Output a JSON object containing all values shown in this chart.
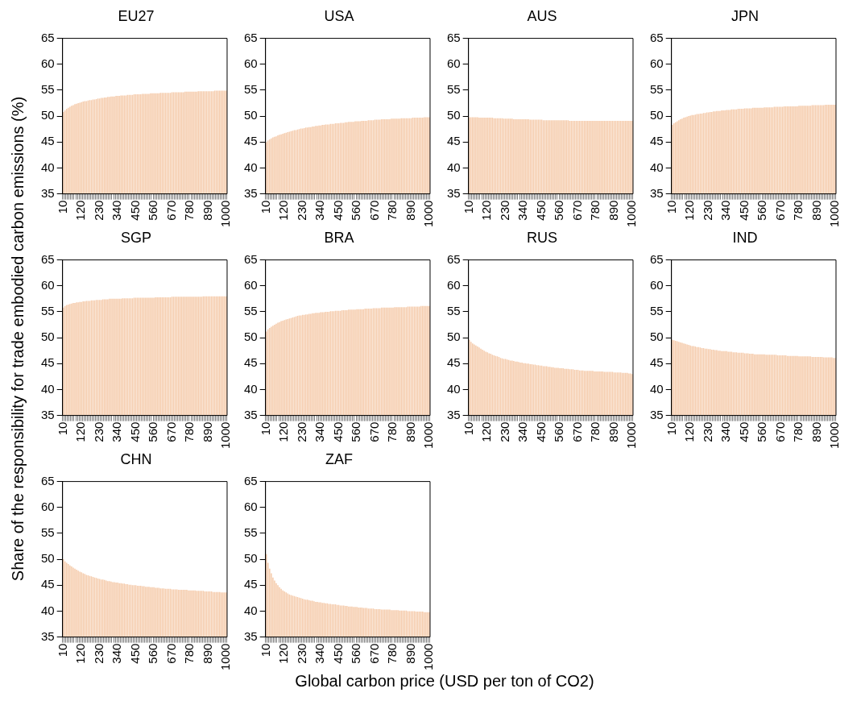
{
  "chart_data": [
    {
      "type": "bar",
      "title": "EU27",
      "color": "#f5cbab",
      "ylim": [
        35,
        65
      ],
      "yticks": [
        35,
        40,
        45,
        50,
        55,
        60,
        65
      ],
      "grid": false,
      "categories": [
        "10",
        null,
        null,
        null,
        null,
        null,
        null,
        null,
        null,
        null,
        null,
        "120",
        null,
        null,
        null,
        null,
        null,
        null,
        null,
        null,
        null,
        null,
        "230",
        null,
        null,
        null,
        null,
        null,
        null,
        null,
        null,
        null,
        null,
        "340",
        null,
        null,
        null,
        null,
        null,
        null,
        null,
        null,
        null,
        null,
        "450",
        null,
        null,
        null,
        null,
        null,
        null,
        null,
        null,
        null,
        null,
        "560",
        null,
        null,
        null,
        null,
        null,
        null,
        null,
        null,
        null,
        null,
        "670",
        null,
        null,
        null,
        null,
        null,
        null,
        null,
        null,
        null,
        null,
        "780",
        null,
        null,
        null,
        null,
        null,
        null,
        null,
        null,
        null,
        null,
        "890",
        null,
        null,
        null,
        null,
        null,
        null,
        null,
        null,
        null,
        null,
        "1000"
      ],
      "values": [
        50.8,
        51.1,
        51.4,
        51.6,
        51.8,
        52.0,
        52.1,
        52.3,
        52.4,
        52.5,
        52.6,
        52.7,
        52.8,
        52.9,
        52.9,
        53.0,
        53.1,
        53.1,
        53.2,
        53.2,
        53.3,
        53.4,
        53.4,
        53.5,
        53.5,
        53.6,
        53.6,
        53.7,
        53.7,
        53.8,
        53.8,
        53.8,
        53.9,
        53.9,
        53.9,
        54.0,
        54.0,
        54.0,
        54.0,
        54.1,
        54.1,
        54.1,
        54.1,
        54.2,
        54.2,
        54.2,
        54.2,
        54.2,
        54.3,
        54.3,
        54.3,
        54.3,
        54.3,
        54.4,
        54.4,
        54.4,
        54.4,
        54.4,
        54.4,
        54.5,
        54.5,
        54.5,
        54.5,
        54.5,
        54.5,
        54.5,
        54.6,
        54.6,
        54.6,
        54.6,
        54.6,
        54.6,
        54.6,
        54.6,
        54.7,
        54.7,
        54.7,
        54.7,
        54.7,
        54.7,
        54.7,
        54.7,
        54.8,
        54.8,
        54.8,
        54.8,
        54.8,
        54.8,
        54.8,
        54.8,
        54.8,
        54.8,
        54.9,
        54.9,
        54.9,
        54.9,
        54.9,
        54.9,
        54.9,
        54.9
      ]
    },
    {
      "type": "bar",
      "title": "USA",
      "color": "#f5cbab",
      "ylim": [
        35,
        65
      ],
      "yticks": [
        35,
        40,
        45,
        50,
        55,
        60,
        65
      ],
      "grid": false,
      "categories": [
        "10",
        null,
        null,
        null,
        null,
        null,
        null,
        null,
        null,
        null,
        null,
        "120",
        null,
        null,
        null,
        null,
        null,
        null,
        null,
        null,
        null,
        null,
        "230",
        null,
        null,
        null,
        null,
        null,
        null,
        null,
        null,
        null,
        null,
        "340",
        null,
        null,
        null,
        null,
        null,
        null,
        null,
        null,
        null,
        null,
        "450",
        null,
        null,
        null,
        null,
        null,
        null,
        null,
        null,
        null,
        null,
        "560",
        null,
        null,
        null,
        null,
        null,
        null,
        null,
        null,
        null,
        null,
        "670",
        null,
        null,
        null,
        null,
        null,
        null,
        null,
        null,
        null,
        null,
        "780",
        null,
        null,
        null,
        null,
        null,
        null,
        null,
        null,
        null,
        null,
        "890",
        null,
        null,
        null,
        null,
        null,
        null,
        null,
        null,
        null,
        null,
        "1000"
      ],
      "values": [
        45.0,
        45.3,
        45.5,
        45.7,
        45.9,
        46.0,
        46.1,
        46.3,
        46.4,
        46.5,
        46.6,
        46.7,
        46.8,
        46.9,
        47.0,
        47.1,
        47.2,
        47.3,
        47.3,
        47.4,
        47.5,
        47.6,
        47.6,
        47.7,
        47.8,
        47.8,
        47.9,
        47.9,
        48.0,
        48.0,
        48.1,
        48.1,
        48.2,
        48.2,
        48.3,
        48.3,
        48.4,
        48.4,
        48.4,
        48.5,
        48.5,
        48.5,
        48.6,
        48.6,
        48.6,
        48.7,
        48.7,
        48.7,
        48.8,
        48.8,
        48.9,
        48.9,
        48.9,
        48.9,
        49.0,
        49.0,
        49.0,
        49.0,
        49.1,
        49.1,
        49.1,
        49.1,
        49.2,
        49.2,
        49.2,
        49.2,
        49.3,
        49.3,
        49.3,
        49.3,
        49.4,
        49.4,
        49.4,
        49.4,
        49.4,
        49.4,
        49.5,
        49.5,
        49.5,
        49.5,
        49.5,
        49.5,
        49.6,
        49.6,
        49.6,
        49.6,
        49.6,
        49.6,
        49.6,
        49.7,
        49.7,
        49.7,
        49.7,
        49.7,
        49.7,
        49.7,
        49.8,
        49.8,
        49.8,
        49.8
      ]
    },
    {
      "type": "bar",
      "title": "AUS",
      "color": "#f5cbab",
      "ylim": [
        35,
        65
      ],
      "yticks": [
        35,
        40,
        45,
        50,
        55,
        60,
        65
      ],
      "grid": false,
      "categories": [
        "10",
        null,
        null,
        null,
        null,
        null,
        null,
        null,
        null,
        null,
        null,
        "120",
        null,
        null,
        null,
        null,
        null,
        null,
        null,
        null,
        null,
        null,
        "230",
        null,
        null,
        null,
        null,
        null,
        null,
        null,
        null,
        null,
        null,
        "340",
        null,
        null,
        null,
        null,
        null,
        null,
        null,
        null,
        null,
        null,
        "450",
        null,
        null,
        null,
        null,
        null,
        null,
        null,
        null,
        null,
        null,
        "560",
        null,
        null,
        null,
        null,
        null,
        null,
        null,
        null,
        null,
        null,
        "670",
        null,
        null,
        null,
        null,
        null,
        null,
        null,
        null,
        null,
        null,
        "780",
        null,
        null,
        null,
        null,
        null,
        null,
        null,
        null,
        null,
        null,
        "890",
        null,
        null,
        null,
        null,
        null,
        null,
        null,
        null,
        null,
        null,
        "1000"
      ],
      "values": [
        49.8,
        49.8,
        49.8,
        49.8,
        49.8,
        49.8,
        49.7,
        49.7,
        49.7,
        49.7,
        49.7,
        49.7,
        49.7,
        49.7,
        49.7,
        49.6,
        49.6,
        49.6,
        49.6,
        49.6,
        49.6,
        49.5,
        49.5,
        49.5,
        49.5,
        49.5,
        49.5,
        49.4,
        49.4,
        49.4,
        49.4,
        49.4,
        49.4,
        49.4,
        49.4,
        49.4,
        49.4,
        49.3,
        49.3,
        49.3,
        49.3,
        49.3,
        49.3,
        49.3,
        49.3,
        49.2,
        49.2,
        49.2,
        49.2,
        49.2,
        49.2,
        49.2,
        49.2,
        49.2,
        49.2,
        49.2,
        49.2,
        49.2,
        49.2,
        49.2,
        49.2,
        49.1,
        49.1,
        49.1,
        49.1,
        49.1,
        49.1,
        49.1,
        49.1,
        49.1,
        49.1,
        49.1,
        49.1,
        49.1,
        49.1,
        49.1,
        49.1,
        49.1,
        49.1,
        49.1,
        49.1,
        49.1,
        49.1,
        49.1,
        49.1,
        49.1,
        49.1,
        49.1,
        49.1,
        49.1,
        49.1,
        49.1,
        49.1,
        49.1,
        49.1,
        49.1,
        49.1,
        49.1,
        49.1,
        49.1
      ]
    },
    {
      "type": "bar",
      "title": "JPN",
      "color": "#f5cbab",
      "ylim": [
        35,
        65
      ],
      "yticks": [
        35,
        40,
        45,
        50,
        55,
        60,
        65
      ],
      "grid": false,
      "categories": [
        "10",
        null,
        null,
        null,
        null,
        null,
        null,
        null,
        null,
        null,
        null,
        "120",
        null,
        null,
        null,
        null,
        null,
        null,
        null,
        null,
        null,
        null,
        "230",
        null,
        null,
        null,
        null,
        null,
        null,
        null,
        null,
        null,
        null,
        "340",
        null,
        null,
        null,
        null,
        null,
        null,
        null,
        null,
        null,
        null,
        "450",
        null,
        null,
        null,
        null,
        null,
        null,
        null,
        null,
        null,
        null,
        "560",
        null,
        null,
        null,
        null,
        null,
        null,
        null,
        null,
        null,
        null,
        "670",
        null,
        null,
        null,
        null,
        null,
        null,
        null,
        null,
        null,
        null,
        "780",
        null,
        null,
        null,
        null,
        null,
        null,
        null,
        null,
        null,
        null,
        "890",
        null,
        null,
        null,
        null,
        null,
        null,
        null,
        null,
        null,
        null,
        "1000"
      ],
      "values": [
        48.3,
        48.6,
        48.8,
        49.0,
        49.2,
        49.4,
        49.5,
        49.7,
        49.8,
        49.9,
        50.0,
        50.1,
        50.2,
        50.2,
        50.3,
        50.4,
        50.4,
        50.5,
        50.5,
        50.6,
        50.6,
        50.7,
        50.7,
        50.8,
        50.8,
        50.9,
        50.9,
        51.0,
        51.0,
        51.0,
        51.1,
        51.1,
        51.1,
        51.2,
        51.2,
        51.2,
        51.3,
        51.3,
        51.3,
        51.3,
        51.4,
        51.4,
        51.4,
        51.4,
        51.5,
        51.5,
        51.5,
        51.5,
        51.5,
        51.6,
        51.6,
        51.6,
        51.6,
        51.6,
        51.6,
        51.6,
        51.7,
        51.7,
        51.7,
        51.7,
        51.7,
        51.7,
        51.8,
        51.8,
        51.8,
        51.8,
        51.8,
        51.8,
        51.9,
        51.9,
        51.9,
        51.9,
        51.9,
        51.9,
        51.9,
        51.9,
        51.9,
        52.0,
        52.0,
        52.0,
        52.0,
        52.0,
        52.0,
        52.0,
        52.0,
        52.1,
        52.1,
        52.1,
        52.1,
        52.1,
        52.1,
        52.1,
        52.1,
        52.2,
        52.2,
        52.2,
        52.2,
        52.2,
        52.2,
        52.2
      ]
    },
    {
      "type": "bar",
      "title": "SGP",
      "ylabel": "Share of the responsibility for trade embodied carbon emissions (%)",
      "color": "#f5cbab",
      "ylim": [
        35,
        65
      ],
      "yticks": [
        35,
        40,
        45,
        50,
        55,
        60,
        65
      ],
      "grid": false,
      "categories": [
        "10",
        null,
        null,
        null,
        null,
        null,
        null,
        null,
        null,
        null,
        null,
        "120",
        null,
        null,
        null,
        null,
        null,
        null,
        null,
        null,
        null,
        null,
        "230",
        null,
        null,
        null,
        null,
        null,
        null,
        null,
        null,
        null,
        null,
        "340",
        null,
        null,
        null,
        null,
        null,
        null,
        null,
        null,
        null,
        null,
        "450",
        null,
        null,
        null,
        null,
        null,
        null,
        null,
        null,
        null,
        null,
        "560",
        null,
        null,
        null,
        null,
        null,
        null,
        null,
        null,
        null,
        null,
        "670",
        null,
        null,
        null,
        null,
        null,
        null,
        null,
        null,
        null,
        null,
        "780",
        null,
        null,
        null,
        null,
        null,
        null,
        null,
        null,
        null,
        null,
        "890",
        null,
        null,
        null,
        null,
        null,
        null,
        null,
        null,
        null,
        null,
        "1000"
      ],
      "values": [
        55.8,
        56.1,
        56.3,
        56.4,
        56.5,
        56.6,
        56.7,
        56.7,
        56.8,
        56.8,
        56.9,
        56.9,
        57.0,
        57.0,
        57.1,
        57.1,
        57.1,
        57.2,
        57.2,
        57.2,
        57.3,
        57.3,
        57.3,
        57.3,
        57.4,
        57.4,
        57.4,
        57.4,
        57.5,
        57.5,
        57.5,
        57.5,
        57.5,
        57.5,
        57.5,
        57.5,
        57.6,
        57.6,
        57.6,
        57.6,
        57.6,
        57.6,
        57.6,
        57.7,
        57.7,
        57.7,
        57.7,
        57.7,
        57.7,
        57.7,
        57.7,
        57.7,
        57.7,
        57.7,
        57.7,
        57.7,
        57.8,
        57.8,
        57.8,
        57.8,
        57.8,
        57.8,
        57.8,
        57.8,
        57.8,
        57.8,
        57.9,
        57.9,
        57.9,
        57.9,
        57.9,
        57.9,
        57.9,
        57.9,
        57.9,
        57.9,
        57.9,
        57.9,
        57.9,
        57.9,
        57.9,
        57.9,
        57.9,
        57.9,
        57.9,
        58.0,
        58.0,
        58.0,
        58.0,
        58.0,
        58.0,
        58.0,
        58.0,
        58.0,
        58.0,
        58.0,
        58.0,
        58.0,
        58.0,
        58.0
      ]
    },
    {
      "type": "bar",
      "title": "BRA",
      "color": "#f5cbab",
      "ylim": [
        35,
        65
      ],
      "yticks": [
        35,
        40,
        45,
        50,
        55,
        60,
        65
      ],
      "grid": false,
      "categories": [
        "10",
        null,
        null,
        null,
        null,
        null,
        null,
        null,
        null,
        null,
        null,
        "120",
        null,
        null,
        null,
        null,
        null,
        null,
        null,
        null,
        null,
        null,
        "230",
        null,
        null,
        null,
        null,
        null,
        null,
        null,
        null,
        null,
        null,
        "340",
        null,
        null,
        null,
        null,
        null,
        null,
        null,
        null,
        null,
        null,
        "450",
        null,
        null,
        null,
        null,
        null,
        null,
        null,
        null,
        null,
        null,
        "560",
        null,
        null,
        null,
        null,
        null,
        null,
        null,
        null,
        null,
        null,
        "670",
        null,
        null,
        null,
        null,
        null,
        null,
        null,
        null,
        null,
        null,
        "780",
        null,
        null,
        null,
        null,
        null,
        null,
        null,
        null,
        null,
        null,
        "890",
        null,
        null,
        null,
        null,
        null,
        null,
        null,
        null,
        null,
        null,
        "1000"
      ],
      "values": [
        51.2,
        51.6,
        51.9,
        52.1,
        52.3,
        52.5,
        52.7,
        52.9,
        53.0,
        53.2,
        53.3,
        53.4,
        53.5,
        53.6,
        53.7,
        53.8,
        53.9,
        54.0,
        54.1,
        54.2,
        54.3,
        54.3,
        54.4,
        54.4,
        54.5,
        54.5,
        54.6,
        54.6,
        54.7,
        54.7,
        54.8,
        54.8,
        54.8,
        54.9,
        54.9,
        54.9,
        55.0,
        55.0,
        55.0,
        55.1,
        55.1,
        55.1,
        55.2,
        55.2,
        55.2,
        55.2,
        55.3,
        55.3,
        55.3,
        55.3,
        55.4,
        55.4,
        55.4,
        55.4,
        55.4,
        55.5,
        55.5,
        55.5,
        55.5,
        55.5,
        55.6,
        55.6,
        55.6,
        55.6,
        55.6,
        55.7,
        55.7,
        55.7,
        55.7,
        55.7,
        55.8,
        55.8,
        55.8,
        55.8,
        55.8,
        55.8,
        55.8,
        55.8,
        55.9,
        55.9,
        55.9,
        55.9,
        55.9,
        55.9,
        55.9,
        55.9,
        56.0,
        56.0,
        56.0,
        56.0,
        56.0,
        56.0,
        56.0,
        56.0,
        56.1,
        56.1,
        56.1,
        56.1,
        56.1,
        56.1
      ]
    },
    {
      "type": "bar",
      "title": "RUS",
      "color": "#f5cbab",
      "ylim": [
        35,
        65
      ],
      "yticks": [
        35,
        40,
        45,
        50,
        55,
        60,
        65
      ],
      "grid": false,
      "categories": [
        "10",
        null,
        null,
        null,
        null,
        null,
        null,
        null,
        null,
        null,
        null,
        "120",
        null,
        null,
        null,
        null,
        null,
        null,
        null,
        null,
        null,
        null,
        "230",
        null,
        null,
        null,
        null,
        null,
        null,
        null,
        null,
        null,
        null,
        "340",
        null,
        null,
        null,
        null,
        null,
        null,
        null,
        null,
        null,
        null,
        "450",
        null,
        null,
        null,
        null,
        null,
        null,
        null,
        null,
        null,
        null,
        "560",
        null,
        null,
        null,
        null,
        null,
        null,
        null,
        null,
        null,
        null,
        "670",
        null,
        null,
        null,
        null,
        null,
        null,
        null,
        null,
        null,
        null,
        "780",
        null,
        null,
        null,
        null,
        null,
        null,
        null,
        null,
        null,
        null,
        "890",
        null,
        null,
        null,
        null,
        null,
        null,
        null,
        null,
        null,
        null,
        "1000"
      ],
      "values": [
        49.6,
        49.2,
        48.9,
        48.7,
        48.5,
        48.3,
        48.1,
        47.9,
        47.7,
        47.5,
        47.3,
        47.2,
        47.0,
        46.9,
        46.7,
        46.6,
        46.5,
        46.4,
        46.3,
        46.1,
        46.0,
        45.9,
        45.9,
        45.8,
        45.7,
        45.6,
        45.6,
        45.5,
        45.4,
        45.4,
        45.3,
        45.2,
        45.2,
        45.1,
        45.1,
        45.0,
        45.0,
        44.9,
        44.9,
        44.8,
        44.8,
        44.7,
        44.7,
        44.6,
        44.6,
        44.5,
        44.5,
        44.5,
        44.4,
        44.4,
        44.3,
        44.3,
        44.2,
        44.2,
        44.2,
        44.1,
        44.1,
        44.1,
        44.0,
        44.0,
        44.0,
        43.9,
        43.9,
        43.9,
        43.8,
        43.8,
        43.8,
        43.7,
        43.7,
        43.7,
        43.6,
        43.6,
        43.6,
        43.6,
        43.6,
        43.6,
        43.5,
        43.5,
        43.5,
        43.5,
        43.5,
        43.5,
        43.4,
        43.4,
        43.4,
        43.4,
        43.4,
        43.4,
        43.3,
        43.3,
        43.3,
        43.3,
        43.3,
        43.2,
        43.2,
        43.2,
        43.2,
        43.1,
        43.1,
        43.0
      ]
    },
    {
      "type": "bar",
      "title": "IND",
      "color": "#f5cbab",
      "ylim": [
        35,
        65
      ],
      "yticks": [
        35,
        40,
        45,
        50,
        55,
        60,
        65
      ],
      "grid": false,
      "categories": [
        "10",
        null,
        null,
        null,
        null,
        null,
        null,
        null,
        null,
        null,
        null,
        "120",
        null,
        null,
        null,
        null,
        null,
        null,
        null,
        null,
        null,
        null,
        "230",
        null,
        null,
        null,
        null,
        null,
        null,
        null,
        null,
        null,
        null,
        "340",
        null,
        null,
        null,
        null,
        null,
        null,
        null,
        null,
        null,
        null,
        "450",
        null,
        null,
        null,
        null,
        null,
        null,
        null,
        null,
        null,
        null,
        "560",
        null,
        null,
        null,
        null,
        null,
        null,
        null,
        null,
        null,
        null,
        "670",
        null,
        null,
        null,
        null,
        null,
        null,
        null,
        null,
        null,
        null,
        "780",
        null,
        null,
        null,
        null,
        null,
        null,
        null,
        null,
        null,
        null,
        "890",
        null,
        null,
        null,
        null,
        null,
        null,
        null,
        null,
        null,
        null,
        "1000"
      ],
      "values": [
        49.6,
        49.5,
        49.4,
        49.3,
        49.2,
        49.1,
        49.0,
        48.9,
        48.8,
        48.7,
        48.6,
        48.5,
        48.4,
        48.4,
        48.3,
        48.2,
        48.2,
        48.1,
        48.0,
        48.0,
        47.9,
        47.9,
        47.8,
        47.8,
        47.7,
        47.7,
        47.6,
        47.6,
        47.5,
        47.5,
        47.4,
        47.4,
        47.4,
        47.4,
        47.3,
        47.3,
        47.3,
        47.2,
        47.2,
        47.2,
        47.1,
        47.1,
        47.1,
        47.1,
        47.0,
        47.0,
        47.0,
        46.9,
        46.9,
        46.9,
        46.8,
        46.8,
        46.8,
        46.8,
        46.8,
        46.8,
        46.8,
        46.7,
        46.7,
        46.7,
        46.7,
        46.7,
        46.7,
        46.7,
        46.6,
        46.6,
        46.6,
        46.6,
        46.6,
        46.6,
        46.5,
        46.5,
        46.5,
        46.5,
        46.5,
        46.5,
        46.5,
        46.4,
        46.4,
        46.4,
        46.4,
        46.4,
        46.4,
        46.4,
        46.4,
        46.3,
        46.3,
        46.3,
        46.3,
        46.3,
        46.3,
        46.3,
        46.2,
        46.2,
        46.2,
        46.2,
        46.2,
        46.2,
        46.1,
        46.1
      ]
    },
    {
      "type": "bar",
      "title": "CHN",
      "color": "#f5cbab",
      "ylim": [
        35,
        65
      ],
      "yticks": [
        35,
        40,
        45,
        50,
        55,
        60,
        65
      ],
      "grid": false,
      "categories": [
        "10",
        null,
        null,
        null,
        null,
        null,
        null,
        null,
        null,
        null,
        null,
        "120",
        null,
        null,
        null,
        null,
        null,
        null,
        null,
        null,
        null,
        null,
        "230",
        null,
        null,
        null,
        null,
        null,
        null,
        null,
        null,
        null,
        null,
        "340",
        null,
        null,
        null,
        null,
        null,
        null,
        null,
        null,
        null,
        null,
        "450",
        null,
        null,
        null,
        null,
        null,
        null,
        null,
        null,
        null,
        null,
        "560",
        null,
        null,
        null,
        null,
        null,
        null,
        null,
        null,
        null,
        null,
        "670",
        null,
        null,
        null,
        null,
        null,
        null,
        null,
        null,
        null,
        null,
        "780",
        null,
        null,
        null,
        null,
        null,
        null,
        null,
        null,
        null,
        null,
        "890",
        null,
        null,
        null,
        null,
        null,
        null,
        null,
        null,
        null,
        null,
        "1000"
      ],
      "values": [
        50.0,
        49.6,
        49.3,
        49.1,
        48.8,
        48.6,
        48.4,
        48.2,
        48.0,
        47.8,
        47.6,
        47.5,
        47.3,
        47.2,
        47.0,
        46.9,
        46.8,
        46.7,
        46.6,
        46.5,
        46.4,
        46.3,
        46.2,
        46.1,
        46.1,
        46.0,
        45.9,
        45.8,
        45.8,
        45.7,
        45.6,
        45.6,
        45.5,
        45.5,
        45.4,
        45.4,
        45.3,
        45.3,
        45.2,
        45.2,
        45.1,
        45.1,
        45.0,
        45.0,
        45.0,
        44.9,
        44.9,
        44.9,
        44.8,
        44.8,
        44.7,
        44.7,
        44.7,
        44.6,
        44.6,
        44.6,
        44.5,
        44.5,
        44.5,
        44.4,
        44.4,
        44.4,
        44.3,
        44.3,
        44.3,
        44.3,
        44.2,
        44.2,
        44.2,
        44.2,
        44.1,
        44.1,
        44.1,
        44.1,
        44.1,
        44.1,
        44.0,
        44.0,
        44.0,
        44.0,
        44.0,
        43.9,
        43.9,
        43.9,
        43.9,
        43.9,
        43.8,
        43.8,
        43.8,
        43.8,
        43.8,
        43.7,
        43.7,
        43.7,
        43.7,
        43.7,
        43.6,
        43.6,
        43.6,
        43.6
      ]
    },
    {
      "type": "bar",
      "title": "ZAF",
      "xlabel": "Global carbon price (USD per ton of CO2)",
      "color": "#f5cbab",
      "ylim": [
        35,
        65
      ],
      "yticks": [
        35,
        40,
        45,
        50,
        55,
        60,
        65
      ],
      "grid": false,
      "categories": [
        "10",
        null,
        null,
        null,
        null,
        null,
        null,
        null,
        null,
        null,
        null,
        "120",
        null,
        null,
        null,
        null,
        null,
        null,
        null,
        null,
        null,
        null,
        "230",
        null,
        null,
        null,
        null,
        null,
        null,
        null,
        null,
        null,
        null,
        "340",
        null,
        null,
        null,
        null,
        null,
        null,
        null,
        null,
        null,
        null,
        "450",
        null,
        null,
        null,
        null,
        null,
        null,
        null,
        null,
        null,
        null,
        "560",
        null,
        null,
        null,
        null,
        null,
        null,
        null,
        null,
        null,
        null,
        "670",
        null,
        null,
        null,
        null,
        null,
        null,
        null,
        null,
        null,
        null,
        "780",
        null,
        null,
        null,
        null,
        null,
        null,
        null,
        null,
        null,
        null,
        "890",
        null,
        null,
        null,
        null,
        null,
        null,
        null,
        null,
        null,
        null,
        "1000"
      ],
      "values": [
        51.0,
        49.3,
        48.2,
        47.3,
        46.5,
        45.9,
        45.4,
        45.0,
        44.6,
        44.3,
        44.0,
        43.8,
        43.6,
        43.4,
        43.2,
        43.1,
        43.0,
        42.9,
        42.8,
        42.7,
        42.6,
        42.5,
        42.4,
        42.3,
        42.2,
        42.2,
        42.1,
        42.0,
        42.0,
        41.9,
        41.8,
        41.8,
        41.7,
        41.7,
        41.6,
        41.6,
        41.5,
        41.5,
        41.4,
        41.4,
        41.3,
        41.3,
        41.3,
        41.2,
        41.2,
        41.1,
        41.1,
        41.1,
        41.0,
        41.0,
        40.9,
        40.9,
        40.9,
        40.8,
        40.8,
        40.8,
        40.7,
        40.7,
        40.7,
        40.6,
        40.6,
        40.6,
        40.5,
        40.5,
        40.5,
        40.5,
        40.4,
        40.4,
        40.4,
        40.4,
        40.3,
        40.3,
        40.3,
        40.3,
        40.3,
        40.3,
        40.2,
        40.2,
        40.2,
        40.2,
        40.2,
        40.1,
        40.1,
        40.1,
        40.1,
        40.1,
        40.0,
        40.0,
        40.0,
        40.0,
        40.0,
        39.9,
        39.9,
        39.9,
        39.9,
        39.9,
        39.8,
        39.8,
        39.8,
        39.8
      ]
    }
  ]
}
